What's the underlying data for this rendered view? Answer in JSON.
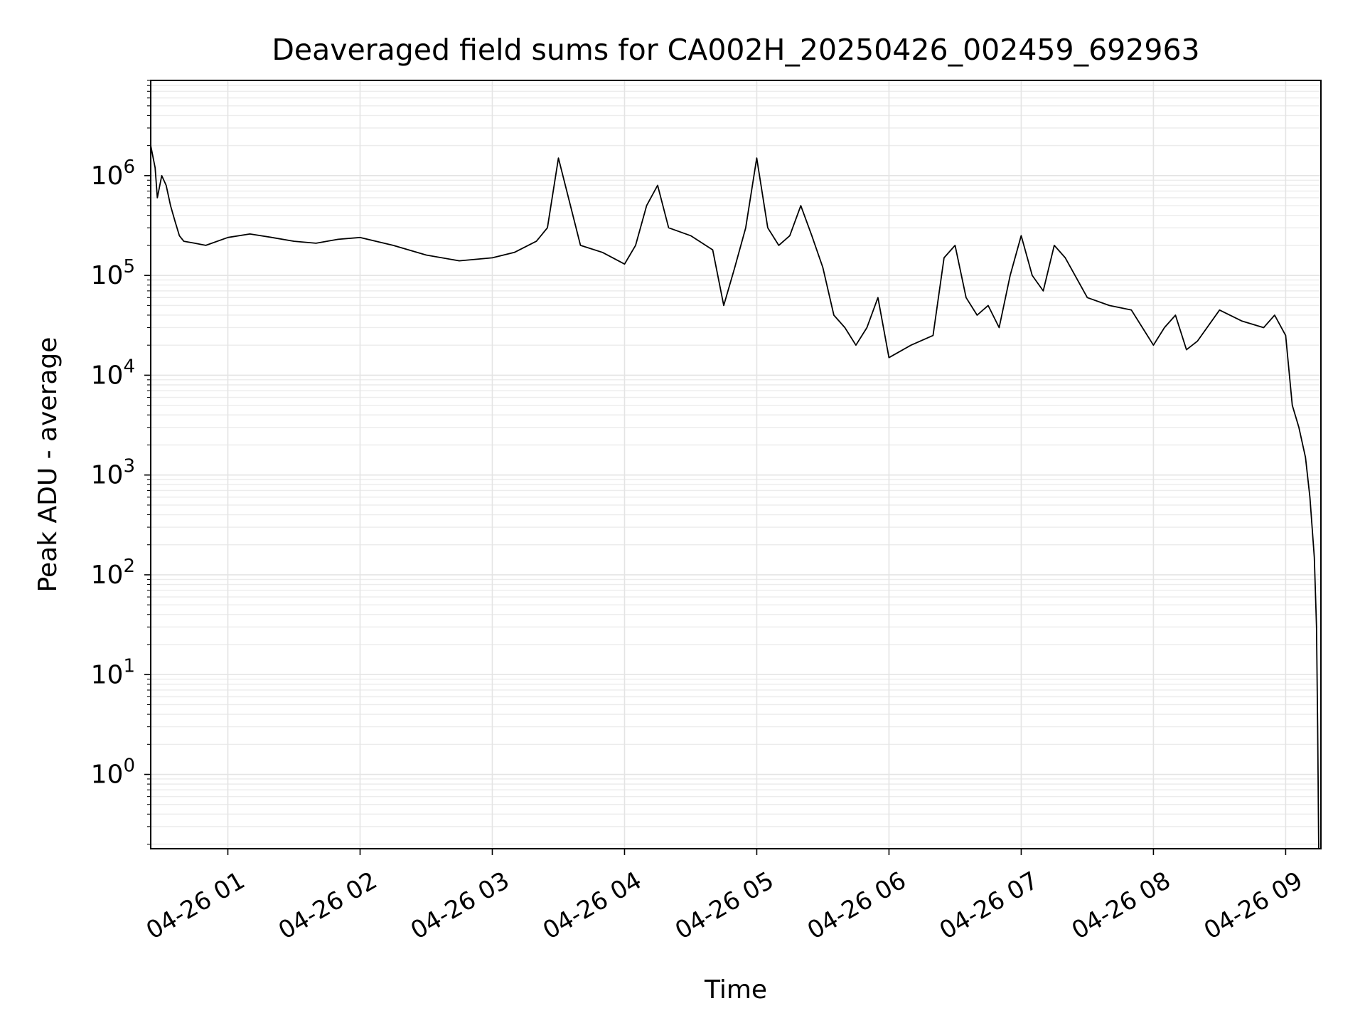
{
  "chart_data": {
    "type": "line",
    "title": "Deaveraged field sums for CA002H_20250426_002459_692963",
    "xlabel": "Time",
    "ylabel": "Peak ADU - average",
    "yscale": "log",
    "ylim": [
      0.18,
      9000000
    ],
    "xlim": [
      "2025-04-26 00:25",
      "2025-04-26 09:16"
    ],
    "grid": true,
    "line_color": "#000000",
    "x_tick_labels": [
      "04-26 01",
      "04-26 02",
      "04-26 03",
      "04-26 04",
      "04-26 05",
      "04-26 06",
      "04-26 07",
      "04-26 08",
      "04-26 09"
    ],
    "x_tick_times": [
      "2025-04-26 01:00",
      "2025-04-26 02:00",
      "2025-04-26 03:00",
      "2025-04-26 04:00",
      "2025-04-26 05:00",
      "2025-04-26 06:00",
      "2025-04-26 07:00",
      "2025-04-26 08:00",
      "2025-04-26 09:00"
    ],
    "y_ticks": [
      {
        "value": 1,
        "base": "10",
        "exp": "0"
      },
      {
        "value": 10,
        "base": "10",
        "exp": "1"
      },
      {
        "value": 100,
        "base": "10",
        "exp": "2"
      },
      {
        "value": 1000,
        "base": "10",
        "exp": "3"
      },
      {
        "value": 10000,
        "base": "10",
        "exp": "4"
      },
      {
        "value": 100000,
        "base": "10",
        "exp": "5"
      },
      {
        "value": 1000000,
        "base": "10",
        "exp": "6"
      }
    ],
    "series": [
      {
        "x": [
          "2025-04-26 00:25",
          "2025-04-26 00:27",
          "2025-04-26 00:28",
          "2025-04-26 00:30",
          "2025-04-26 00:32",
          "2025-04-26 00:34",
          "2025-04-26 00:36",
          "2025-04-26 00:38",
          "2025-04-26 00:40",
          "2025-04-26 00:45",
          "2025-04-26 00:50",
          "2025-04-26 01:00",
          "2025-04-26 01:10",
          "2025-04-26 01:20",
          "2025-04-26 01:30",
          "2025-04-26 01:40",
          "2025-04-26 01:50",
          "2025-04-26 02:00",
          "2025-04-26 02:15",
          "2025-04-26 02:30",
          "2025-04-26 02:45",
          "2025-04-26 03:00",
          "2025-04-26 03:10",
          "2025-04-26 03:20",
          "2025-04-26 03:25",
          "2025-04-26 03:30",
          "2025-04-26 03:40",
          "2025-04-26 03:50",
          "2025-04-26 04:00",
          "2025-04-26 04:05",
          "2025-04-26 04:10",
          "2025-04-26 04:15",
          "2025-04-26 04:20",
          "2025-04-26 04:30",
          "2025-04-26 04:40",
          "2025-04-26 04:45",
          "2025-04-26 04:50",
          "2025-04-26 04:55",
          "2025-04-26 05:00",
          "2025-04-26 05:05",
          "2025-04-26 05:10",
          "2025-04-26 05:15",
          "2025-04-26 05:20",
          "2025-04-26 05:25",
          "2025-04-26 05:30",
          "2025-04-26 05:35",
          "2025-04-26 05:40",
          "2025-04-26 05:45",
          "2025-04-26 05:50",
          "2025-04-26 05:55",
          "2025-04-26 06:00",
          "2025-04-26 06:10",
          "2025-04-26 06:20",
          "2025-04-26 06:25",
          "2025-04-26 06:30",
          "2025-04-26 06:35",
          "2025-04-26 06:40",
          "2025-04-26 06:45",
          "2025-04-26 06:50",
          "2025-04-26 06:55",
          "2025-04-26 07:00",
          "2025-04-26 07:05",
          "2025-04-26 07:10",
          "2025-04-26 07:15",
          "2025-04-26 07:20",
          "2025-04-26 07:30",
          "2025-04-26 07:40",
          "2025-04-26 07:50",
          "2025-04-26 07:55",
          "2025-04-26 08:00",
          "2025-04-26 08:05",
          "2025-04-26 08:10",
          "2025-04-26 08:15",
          "2025-04-26 08:20",
          "2025-04-26 08:30",
          "2025-04-26 08:40",
          "2025-04-26 08:50",
          "2025-04-26 08:55",
          "2025-04-26 09:00",
          "2025-04-26 09:03",
          "2025-04-26 09:06",
          "2025-04-26 09:09",
          "2025-04-26 09:11",
          "2025-04-26 09:13",
          "2025-04-26 09:14",
          "2025-04-26 09:14:30",
          "2025-04-26 09:15"
        ],
        "y": [
          2000000,
          1200000,
          600000,
          1000000,
          800000,
          500000,
          350000,
          250000,
          220000,
          210000,
          200000,
          240000,
          260000,
          240000,
          220000,
          210000,
          230000,
          240000,
          200000,
          160000,
          140000,
          150000,
          170000,
          220000,
          300000,
          1500000,
          200000,
          170000,
          130000,
          200000,
          500000,
          800000,
          300000,
          250000,
          180000,
          50000,
          120000,
          300000,
          1500000,
          300000,
          200000,
          250000,
          500000,
          250000,
          120000,
          40000,
          30000,
          20000,
          30000,
          60000,
          15000,
          20000,
          25000,
          150000,
          200000,
          60000,
          40000,
          50000,
          30000,
          100000,
          250000,
          100000,
          70000,
          200000,
          150000,
          60000,
          50000,
          45000,
          30000,
          20000,
          30000,
          40000,
          18000,
          22000,
          45000,
          35000,
          30000,
          40000,
          25000,
          5000,
          3000,
          1500,
          600,
          150,
          30,
          3,
          0.18
        ]
      }
    ]
  }
}
